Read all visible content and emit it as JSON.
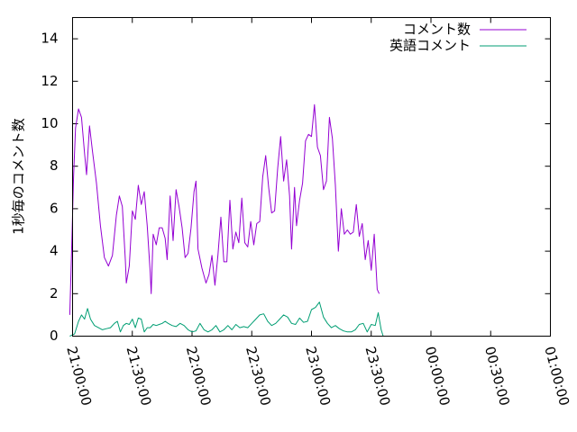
{
  "chart_data": {
    "type": "line",
    "title": "",
    "xlabel": "",
    "ylabel": "1秒毎のコメント数",
    "xlim": [
      0,
      240
    ],
    "ylim": [
      0,
      15
    ],
    "xticks": [
      {
        "value": 0,
        "label": "21:00:00"
      },
      {
        "value": 30,
        "label": "21:30:00"
      },
      {
        "value": 60,
        "label": "22:00:00"
      },
      {
        "value": 90,
        "label": "22:30:00"
      },
      {
        "value": 120,
        "label": "23:00:00"
      },
      {
        "value": 150,
        "label": "23:30:00"
      },
      {
        "value": 180,
        "label": "00:00:00"
      },
      {
        "value": 210,
        "label": "00:30:00"
      },
      {
        "value": 240,
        "label": "01:00:00"
      }
    ],
    "yticks": [
      {
        "value": 0,
        "label": "0"
      },
      {
        "value": 2,
        "label": "2"
      },
      {
        "value": 4,
        "label": "4"
      },
      {
        "value": 6,
        "label": "6"
      },
      {
        "value": 8,
        "label": "8"
      },
      {
        "value": 10,
        "label": "10"
      },
      {
        "value": 12,
        "label": "12"
      },
      {
        "value": 14,
        "label": "14"
      }
    ],
    "grid": false,
    "legend": "top-right",
    "series": [
      {
        "name": "コメント数",
        "color": "#9400d3",
        "points": [
          [
            -1.4,
            1.0
          ],
          [
            -0.5,
            4.0
          ],
          [
            0.5,
            7.5
          ],
          [
            1.5,
            9.8
          ],
          [
            3,
            10.7
          ],
          [
            4.5,
            10.3
          ],
          [
            6,
            8.6
          ],
          [
            7,
            7.6
          ],
          [
            8.5,
            9.9
          ],
          [
            10,
            8.7
          ],
          [
            12,
            7.2
          ],
          [
            14,
            5.2
          ],
          [
            16,
            3.7
          ],
          [
            18,
            3.3
          ],
          [
            20,
            3.8
          ],
          [
            22,
            5.7
          ],
          [
            23.5,
            6.6
          ],
          [
            25,
            6.1
          ],
          [
            26.5,
            3.6
          ],
          [
            27,
            2.5
          ],
          [
            28.5,
            3.3
          ],
          [
            30,
            5.9
          ],
          [
            31.5,
            5.5
          ],
          [
            33,
            7.1
          ],
          [
            34.5,
            6.2
          ],
          [
            36,
            6.8
          ],
          [
            37.5,
            5.2
          ],
          [
            39,
            3.0
          ],
          [
            39.5,
            2.0
          ],
          [
            40.5,
            4.8
          ],
          [
            42,
            4.3
          ],
          [
            43.5,
            5.1
          ],
          [
            45,
            5.1
          ],
          [
            46.5,
            4.6
          ],
          [
            47.5,
            3.6
          ],
          [
            49,
            6.6
          ],
          [
            50.5,
            4.5
          ],
          [
            52,
            6.9
          ],
          [
            53.5,
            6.1
          ],
          [
            55,
            5.1
          ],
          [
            56.5,
            3.7
          ],
          [
            58,
            3.9
          ],
          [
            59.5,
            5.1
          ],
          [
            61,
            6.8
          ],
          [
            62,
            7.3
          ],
          [
            63,
            4.1
          ],
          [
            65,
            3.2
          ],
          [
            67,
            2.5
          ],
          [
            68.5,
            2.9
          ],
          [
            70,
            3.8
          ],
          [
            71.5,
            2.4
          ],
          [
            73,
            3.8
          ],
          [
            74.5,
            5.6
          ],
          [
            76,
            3.5
          ],
          [
            77.5,
            3.5
          ],
          [
            79,
            6.4
          ],
          [
            80.5,
            4.1
          ],
          [
            82,
            4.9
          ],
          [
            83.5,
            4.4
          ],
          [
            85,
            6.5
          ],
          [
            86.5,
            4.4
          ],
          [
            88,
            4.2
          ],
          [
            89.5,
            5.4
          ],
          [
            91,
            4.3
          ],
          [
            92.5,
            5.3
          ],
          [
            94,
            5.4
          ],
          [
            95.5,
            7.5
          ],
          [
            97,
            8.5
          ],
          [
            98.5,
            7.0
          ],
          [
            100,
            5.8
          ],
          [
            101.5,
            5.9
          ],
          [
            103,
            7.9
          ],
          [
            104.5,
            9.4
          ],
          [
            106,
            7.3
          ],
          [
            107.5,
            8.3
          ],
          [
            109,
            6.6
          ],
          [
            110,
            4.1
          ],
          [
            111.5,
            7.0
          ],
          [
            112.5,
            5.2
          ],
          [
            114,
            6.4
          ],
          [
            115.5,
            7.2
          ],
          [
            117,
            9.2
          ],
          [
            118.5,
            9.5
          ],
          [
            120,
            9.4
          ],
          [
            121.5,
            10.9
          ],
          [
            123,
            8.9
          ],
          [
            124.5,
            8.5
          ],
          [
            126,
            6.9
          ],
          [
            127.5,
            7.3
          ],
          [
            129,
            10.3
          ],
          [
            130.5,
            9.3
          ],
          [
            132,
            7.1
          ],
          [
            133.5,
            4.0
          ],
          [
            135,
            6.0
          ],
          [
            136.5,
            4.8
          ],
          [
            138,
            5.0
          ],
          [
            139.5,
            4.8
          ],
          [
            141,
            4.9
          ],
          [
            142.5,
            6.2
          ],
          [
            144,
            4.7
          ],
          [
            145.5,
            5.3
          ],
          [
            147,
            3.6
          ],
          [
            148.5,
            4.5
          ],
          [
            150,
            3.1
          ],
          [
            151.5,
            4.8
          ],
          [
            153,
            2.2
          ],
          [
            154,
            2.0
          ]
        ]
      },
      {
        "name": "英語コメント",
        "color": "#009e73",
        "points": [
          [
            -1.4,
            0.0
          ],
          [
            1,
            0.1
          ],
          [
            3,
            0.7
          ],
          [
            4.5,
            1.0
          ],
          [
            6,
            0.8
          ],
          [
            7.5,
            1.3
          ],
          [
            9,
            0.8
          ],
          [
            11,
            0.5
          ],
          [
            13,
            0.4
          ],
          [
            15,
            0.3
          ],
          [
            17,
            0.35
          ],
          [
            19,
            0.4
          ],
          [
            21,
            0.6
          ],
          [
            22.5,
            0.7
          ],
          [
            24,
            0.2
          ],
          [
            25.5,
            0.5
          ],
          [
            27,
            0.6
          ],
          [
            28.5,
            0.55
          ],
          [
            30,
            0.8
          ],
          [
            31.5,
            0.4
          ],
          [
            33,
            0.85
          ],
          [
            34.5,
            0.8
          ],
          [
            36,
            0.2
          ],
          [
            37.5,
            0.4
          ],
          [
            39,
            0.4
          ],
          [
            40.5,
            0.55
          ],
          [
            42,
            0.5
          ],
          [
            43.5,
            0.55
          ],
          [
            45,
            0.6
          ],
          [
            46.5,
            0.7
          ],
          [
            48,
            0.6
          ],
          [
            50,
            0.5
          ],
          [
            52,
            0.45
          ],
          [
            54,
            0.6
          ],
          [
            56,
            0.5
          ],
          [
            58,
            0.3
          ],
          [
            60,
            0.2
          ],
          [
            62,
            0.25
          ],
          [
            64,
            0.6
          ],
          [
            66,
            0.3
          ],
          [
            68,
            0.2
          ],
          [
            70,
            0.3
          ],
          [
            72,
            0.5
          ],
          [
            74,
            0.2
          ],
          [
            76,
            0.3
          ],
          [
            78,
            0.5
          ],
          [
            80,
            0.3
          ],
          [
            82,
            0.55
          ],
          [
            84,
            0.4
          ],
          [
            86,
            0.45
          ],
          [
            88,
            0.4
          ],
          [
            90,
            0.6
          ],
          [
            92,
            0.8
          ],
          [
            94,
            1.0
          ],
          [
            96,
            1.05
          ],
          [
            98,
            0.7
          ],
          [
            100,
            0.5
          ],
          [
            102,
            0.6
          ],
          [
            104,
            0.8
          ],
          [
            106,
            1.0
          ],
          [
            108,
            0.9
          ],
          [
            110,
            0.6
          ],
          [
            112,
            0.55
          ],
          [
            114,
            0.85
          ],
          [
            116,
            0.65
          ],
          [
            118,
            0.7
          ],
          [
            120,
            1.25
          ],
          [
            122,
            1.35
          ],
          [
            124,
            1.6
          ],
          [
            126,
            0.9
          ],
          [
            128,
            0.6
          ],
          [
            130,
            0.4
          ],
          [
            132,
            0.5
          ],
          [
            134,
            0.35
          ],
          [
            136,
            0.25
          ],
          [
            138,
            0.2
          ],
          [
            140,
            0.2
          ],
          [
            142,
            0.3
          ],
          [
            144,
            0.55
          ],
          [
            146,
            0.6
          ],
          [
            148,
            0.2
          ],
          [
            150,
            0.55
          ],
          [
            152,
            0.5
          ],
          [
            153.5,
            1.1
          ],
          [
            155,
            0.3
          ],
          [
            156,
            0.0
          ]
        ]
      }
    ]
  }
}
